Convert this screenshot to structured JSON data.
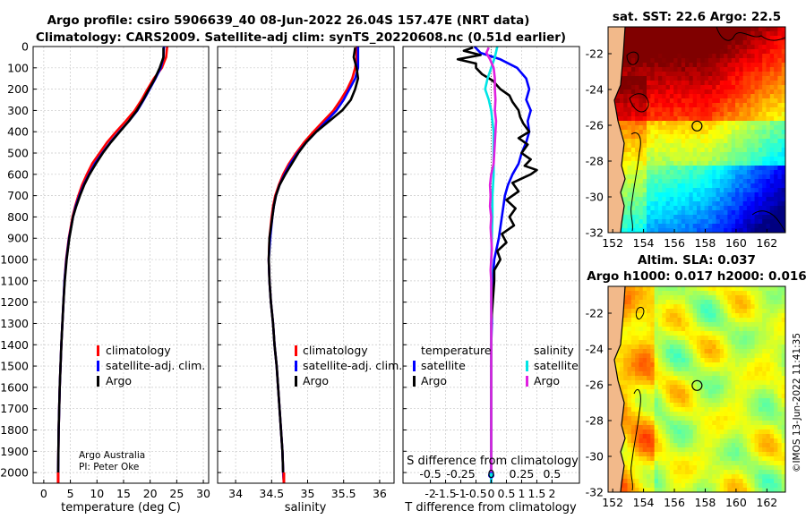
{
  "header": {
    "title_line1": "Argo profile: csiro 5906639_40 08-Jun-2022 26.04S 157.47E (NRT data)",
    "title_line2": "Climatology: CARS2009. Satellite-adj clim: synTS_20220608.nc (0.51d earlier)"
  },
  "colors": {
    "climatology": "#ff0000",
    "satellite_adj": "#0000ff",
    "argo": "#000000",
    "salinity_satellite": "#00e5e5",
    "salinity_argo": "#e020e0",
    "land": "#f2b98a"
  },
  "credits": {
    "line1": "Argo Australia",
    "line2": "PI: Peter Oke",
    "timestamp": "©IMOS 13-Jun-2022 11:41:35"
  },
  "chart_data": [
    {
      "type": "line",
      "name": "temperature-profile",
      "xlabel": "temperature (deg C)",
      "ylabel": "",
      "xlim": [
        -2,
        31
      ],
      "ylim": [
        2050,
        0
      ],
      "xticks": [
        0,
        5,
        10,
        15,
        20,
        25,
        30
      ],
      "yticks": [
        0,
        100,
        200,
        300,
        400,
        500,
        600,
        700,
        800,
        900,
        1000,
        1100,
        1200,
        1300,
        1400,
        1500,
        1600,
        1700,
        1800,
        1900,
        2000
      ],
      "grid": true,
      "legend": {
        "placement": "lower-right",
        "entries": [
          "climatology",
          "satellite-adj. clim.",
          "Argo"
        ]
      },
      "series": [
        {
          "name": "climatology",
          "color": "#ff0000",
          "depth": [
            0,
            50,
            100,
            150,
            200,
            250,
            300,
            350,
            400,
            450,
            500,
            550,
            600,
            650,
            700,
            750,
            800,
            900,
            1000,
            1100,
            1200,
            1300,
            1400,
            1500,
            1600,
            1700,
            1800,
            1900,
            2000,
            2050
          ],
          "values": [
            23.2,
            23.0,
            22.2,
            20.7,
            19.5,
            18.4,
            17.1,
            15.4,
            13.6,
            11.9,
            10.5,
            9.1,
            8.1,
            7.2,
            6.5,
            5.9,
            5.4,
            4.7,
            4.2,
            3.9,
            3.7,
            3.5,
            3.3,
            3.15,
            3.0,
            2.9,
            2.8,
            2.75,
            2.7,
            2.7
          ]
        },
        {
          "name": "satellite-adj. clim.",
          "color": "#0000ff",
          "depth": [
            0,
            50,
            100,
            150,
            200,
            250,
            300,
            350,
            400,
            450,
            500,
            550,
            600,
            650,
            700,
            750,
            800,
            900,
            1000,
            1100,
            1200,
            1300,
            1400,
            1500,
            1600,
            1700,
            1800,
            1900,
            2000,
            2050
          ],
          "values": [
            22.6,
            22.5,
            22.0,
            21.0,
            19.9,
            18.8,
            17.6,
            16.0,
            14.2,
            12.5,
            11.0,
            9.6,
            8.5,
            7.5,
            6.7,
            6.0,
            5.5,
            4.75,
            4.25,
            3.9,
            3.7,
            3.5,
            3.3,
            3.15,
            3.0,
            2.9,
            2.8,
            2.75,
            2.7,
            2.7
          ]
        },
        {
          "name": "Argo",
          "color": "#000000",
          "depth": [
            5,
            50,
            100,
            150,
            200,
            250,
            300,
            350,
            400,
            450,
            500,
            550,
            600,
            650,
            700,
            750,
            800,
            900,
            1000,
            1100,
            1200,
            1300,
            1400,
            1500,
            1600,
            1700,
            1800,
            1900,
            2000
          ],
          "values": [
            22.5,
            22.5,
            21.8,
            20.9,
            19.8,
            18.7,
            17.5,
            16.0,
            14.3,
            12.6,
            11.1,
            9.8,
            8.6,
            7.6,
            6.8,
            6.1,
            5.5,
            4.8,
            4.3,
            3.95,
            3.7,
            3.5,
            3.3,
            3.15,
            3.0,
            2.9,
            2.8,
            2.75,
            2.7
          ]
        }
      ]
    },
    {
      "type": "line",
      "name": "salinity-profile",
      "xlabel": "salinity",
      "xlim": [
        33.75,
        36.2
      ],
      "ylim": [
        2050,
        0
      ],
      "xticks": [
        34,
        34.5,
        35,
        35.5,
        36
      ],
      "grid": true,
      "legend": {
        "placement": "lower-right",
        "entries": [
          "climatology",
          "satellite-adj. clim.",
          "Argo"
        ]
      },
      "series": [
        {
          "name": "climatology",
          "color": "#ff0000",
          "depth": [
            0,
            50,
            100,
            150,
            200,
            250,
            300,
            350,
            400,
            450,
            500,
            550,
            600,
            650,
            700,
            750,
            800,
            900,
            1000,
            1100,
            1200,
            1300,
            1400,
            1500,
            1600,
            1700,
            1800,
            1900,
            2000,
            2050
          ],
          "values": [
            35.68,
            35.68,
            35.66,
            35.62,
            35.55,
            35.46,
            35.36,
            35.22,
            35.08,
            34.95,
            34.84,
            34.74,
            34.66,
            34.6,
            34.55,
            34.52,
            34.5,
            34.47,
            34.46,
            34.47,
            34.49,
            34.52,
            34.54,
            34.57,
            34.59,
            34.61,
            34.63,
            34.65,
            34.66,
            34.67
          ]
        },
        {
          "name": "satellite-adj. clim.",
          "color": "#0000ff",
          "depth": [
            0,
            50,
            100,
            150,
            200,
            250,
            300,
            350,
            400,
            450,
            500,
            550,
            600,
            650,
            700,
            750,
            800,
            900,
            1000,
            1100,
            1200,
            1300,
            1400,
            1500,
            1600,
            1700,
            1800,
            1900,
            2000,
            2050
          ],
          "values": [
            35.7,
            35.7,
            35.7,
            35.66,
            35.58,
            35.5,
            35.4,
            35.26,
            35.12,
            34.98,
            34.86,
            34.76,
            34.68,
            34.61,
            34.56,
            34.53,
            34.51,
            34.48,
            34.46,
            34.47,
            34.49,
            34.52,
            34.54,
            34.57,
            34.59,
            34.61,
            34.63,
            34.65,
            34.66,
            34.67
          ]
        },
        {
          "name": "Argo",
          "color": "#000000",
          "depth": [
            5,
            50,
            100,
            150,
            200,
            250,
            300,
            350,
            400,
            450,
            500,
            550,
            600,
            650,
            700,
            750,
            800,
            900,
            1000,
            1100,
            1200,
            1300,
            1400,
            1500,
            1600,
            1700,
            1800,
            1900,
            2000
          ],
          "values": [
            35.66,
            35.64,
            35.68,
            35.7,
            35.66,
            35.6,
            35.48,
            35.3,
            35.12,
            34.98,
            34.87,
            34.78,
            34.69,
            34.61,
            34.56,
            34.53,
            34.51,
            34.47,
            34.46,
            34.47,
            34.49,
            34.52,
            34.54,
            34.57,
            34.59,
            34.61,
            34.63,
            34.65,
            34.66
          ]
        }
      ]
    },
    {
      "type": "line",
      "name": "difference-profile",
      "xlabel": "T difference from climatology",
      "xlabel_top": "S difference from climatology",
      "xlim": [
        -2.9,
        2.9
      ],
      "ylim": [
        2050,
        0
      ],
      "xticks": [
        -2,
        -1.5,
        -1,
        -0.5,
        0,
        0.5,
        1,
        1.5,
        2
      ],
      "xtick_labels": [
        "-2",
        "-1.5",
        "-1",
        "-0.5",
        "0",
        "0.5",
        "1",
        "1.5",
        "2"
      ],
      "s_xticks": [
        -0.5,
        -0.25,
        0,
        0.25,
        0.5
      ],
      "s_xtick_labels": [
        "-0.5",
        "-0.25",
        "0",
        "0.25",
        "0.5"
      ],
      "s_to_t_scale": 4,
      "grid": true,
      "legend": {
        "placement": "lower-right",
        "temperature_title": "temperature",
        "salinity_title": "salinity",
        "entries": [
          "satellite",
          "Argo",
          "satellite",
          "Argo"
        ]
      },
      "series": [
        {
          "name": "T satellite",
          "color": "#0000ff",
          "depth": [
            0,
            30,
            60,
            100,
            150,
            200,
            250,
            300,
            350,
            400,
            450,
            500,
            550,
            600,
            650,
            700,
            800,
            900,
            1000,
            1100,
            1200,
            1300,
            1400,
            1500,
            1600,
            1700,
            1800,
            1900,
            2000,
            2050
          ],
          "values": [
            -0.55,
            -0.35,
            0.3,
            0.85,
            1.15,
            1.25,
            1.15,
            1.3,
            1.2,
            1.25,
            1.15,
            1.0,
            0.9,
            0.7,
            0.55,
            0.45,
            0.35,
            0.25,
            0.1,
            0.05,
            0.02,
            0.02,
            0.0,
            0.0,
            0.0,
            0.0,
            0.0,
            0.0,
            0.0,
            0.0
          ]
        },
        {
          "name": "T Argo",
          "color": "#000000",
          "depth": [
            5,
            20,
            40,
            60,
            80,
            100,
            130,
            160,
            200,
            230,
            260,
            300,
            330,
            360,
            400,
            430,
            460,
            500,
            530,
            560,
            580,
            600,
            640,
            680,
            720,
            760,
            800,
            840,
            880,
            920,
            960,
            1000,
            1050,
            1100,
            1200,
            1300,
            1400,
            1500,
            1600,
            1700,
            1800,
            1900,
            2000
          ],
          "values": [
            -0.6,
            -0.9,
            -0.35,
            -1.1,
            -0.5,
            -0.5,
            -0.3,
            0.05,
            0.3,
            0.6,
            0.7,
            0.9,
            0.95,
            1.05,
            1.25,
            0.9,
            1.2,
            1.0,
            1.3,
            1.1,
            1.5,
            1.3,
            0.7,
            0.9,
            0.5,
            0.8,
            0.6,
            0.75,
            0.35,
            0.5,
            0.2,
            0.3,
            0.1,
            0.1,
            0.05,
            0.0,
            0.0,
            0.0,
            0.0,
            0.0,
            0.0,
            0.0,
            0.0
          ]
        },
        {
          "name": "S satellite",
          "color": "#00e5e5",
          "depth": [
            0,
            50,
            100,
            150,
            200,
            250,
            300,
            350,
            400,
            450,
            500,
            600,
            700,
            800,
            900,
            1000,
            1100,
            1200,
            1300,
            1400,
            1500,
            1600,
            1700,
            1800,
            1900,
            2000,
            2050
          ],
          "values": [
            0.05,
            0.03,
            0.0,
            -0.03,
            -0.05,
            -0.02,
            0.0,
            0.01,
            0.02,
            0.02,
            0.02,
            0.02,
            0.01,
            0.01,
            0.005,
            0.0,
            0.0,
            0.0,
            0.0,
            0.0,
            0.0,
            0.0,
            0.0,
            0.0,
            0.0,
            0.0,
            0.0
          ]
        },
        {
          "name": "S Argo",
          "color": "#e020e0",
          "depth": [
            5,
            30,
            60,
            100,
            150,
            200,
            250,
            300,
            350,
            400,
            450,
            500,
            550,
            600,
            650,
            700,
            750,
            800,
            850,
            900,
            950,
            1000,
            1050,
            1100,
            1200,
            1300,
            1400,
            1500,
            1600,
            1700,
            1800,
            1900,
            2000
          ],
          "values": [
            -0.02,
            -0.04,
            -0.01,
            0.02,
            0.03,
            0.03,
            0.035,
            0.03,
            0.04,
            0.035,
            0.03,
            0.025,
            0.02,
            0.0,
            -0.01,
            -0.005,
            -0.01,
            0.0,
            -0.005,
            0.0,
            0.005,
            0.0,
            -0.005,
            0.0,
            0.0,
            0.0,
            0.0,
            0.0,
            0.0,
            0.0,
            0.0,
            0.0,
            0.0
          ]
        }
      ]
    },
    {
      "type": "heatmap",
      "name": "sst-map",
      "title": "sat. SST: 22.6 Argo: 22.5",
      "xlim": [
        151.7,
        163.2
      ],
      "ylim": [
        -32,
        -20.5
      ],
      "xticks": [
        152,
        154,
        156,
        158,
        160,
        162
      ],
      "yticks": [
        -22,
        -24,
        -26,
        -28,
        -30,
        -32
      ],
      "argo_position": {
        "lon": 157.47,
        "lat": -26.04
      }
    },
    {
      "type": "heatmap",
      "name": "sla-map",
      "title_line1": "Altim. SLA: 0.037",
      "title_line2": "Argo h1000: 0.017 h2000: 0.016",
      "xlim": [
        151.7,
        163.2
      ],
      "ylim": [
        -32,
        -20.5
      ],
      "xticks": [
        152,
        154,
        156,
        158,
        160,
        162
      ],
      "yticks": [
        -22,
        -24,
        -26,
        -28,
        -30,
        -32
      ],
      "argo_position": {
        "lon": 157.47,
        "lat": -26.04
      }
    }
  ]
}
